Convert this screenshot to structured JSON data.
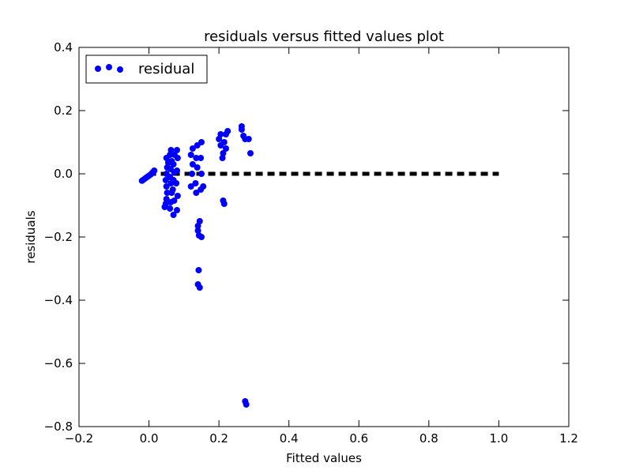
{
  "chart_data": {
    "type": "scatter",
    "title": "residuals versus fitted values plot",
    "xlabel": "Fitted values",
    "ylabel": "residuals",
    "xlim": [
      -0.2,
      1.2
    ],
    "ylim": [
      -0.8,
      0.4
    ],
    "x_ticks": [
      -0.2,
      0.0,
      0.2,
      0.4,
      0.6,
      0.8,
      1.0,
      1.2
    ],
    "y_ticks": [
      -0.8,
      -0.6,
      -0.4,
      -0.2,
      0.0,
      0.2,
      0.4
    ],
    "x_tick_labels": [
      "−0.2",
      "0.0",
      "0.2",
      "0.4",
      "0.6",
      "0.8",
      "1.0",
      "1.2"
    ],
    "y_tick_labels": [
      "−0.8",
      "−0.6",
      "−0.4",
      "−0.2",
      "0.0",
      "0.2",
      "0.4"
    ],
    "grid": false,
    "legend": {
      "position": "top-left",
      "entries": [
        "residual"
      ]
    },
    "colors": {
      "points": "#0000ff",
      "zero_line": "#000000"
    },
    "reference_line": {
      "style": "dashed",
      "x": [
        0.0,
        1.0
      ],
      "y": [
        0.0,
        0.0
      ]
    },
    "series": [
      {
        "name": "residual",
        "points": [
          [
            -0.02,
            -0.022
          ],
          [
            -0.015,
            -0.018
          ],
          [
            -0.01,
            -0.014
          ],
          [
            -0.005,
            -0.01
          ],
          [
            0.0,
            -0.006
          ],
          [
            0.005,
            -0.002
          ],
          [
            0.01,
            0.004
          ],
          [
            0.015,
            0.01
          ],
          [
            0.045,
            -0.105
          ],
          [
            0.048,
            -0.095
          ],
          [
            0.05,
            -0.08
          ],
          [
            0.052,
            -0.06
          ],
          [
            0.05,
            -0.04
          ],
          [
            0.048,
            -0.02
          ],
          [
            0.05,
            0.0
          ],
          [
            0.052,
            0.02
          ],
          [
            0.055,
            0.035
          ],
          [
            0.05,
            0.05
          ],
          [
            0.06,
            -0.11
          ],
          [
            0.062,
            -0.09
          ],
          [
            0.065,
            -0.06
          ],
          [
            0.063,
            -0.03
          ],
          [
            0.06,
            -0.01
          ],
          [
            0.062,
            0.015
          ],
          [
            0.065,
            0.04
          ],
          [
            0.06,
            0.06
          ],
          [
            0.063,
            0.075
          ],
          [
            0.07,
            -0.13
          ],
          [
            0.072,
            -0.085
          ],
          [
            0.068,
            -0.05
          ],
          [
            0.07,
            -0.02
          ],
          [
            0.072,
            0.005
          ],
          [
            0.07,
            0.03
          ],
          [
            0.073,
            0.06
          ],
          [
            0.08,
            -0.115
          ],
          [
            0.082,
            -0.07
          ],
          [
            0.078,
            -0.03
          ],
          [
            0.08,
            0.01
          ],
          [
            0.082,
            0.05
          ],
          [
            0.08,
            0.075
          ],
          [
            0.12,
            -0.04
          ],
          [
            0.123,
            0.0
          ],
          [
            0.125,
            0.03
          ],
          [
            0.12,
            0.06
          ],
          [
            0.125,
            0.08
          ],
          [
            0.135,
            -0.06
          ],
          [
            0.133,
            -0.03
          ],
          [
            0.138,
            0.02
          ],
          [
            0.135,
            0.05
          ],
          [
            0.138,
            0.09
          ],
          [
            0.14,
            -0.165
          ],
          [
            0.14,
            -0.18
          ],
          [
            0.143,
            -0.195
          ],
          [
            0.142,
            -0.305
          ],
          [
            0.14,
            -0.35
          ],
          [
            0.145,
            -0.36
          ],
          [
            0.145,
            -0.15
          ],
          [
            0.15,
            -0.2
          ],
          [
            0.148,
            -0.05
          ],
          [
            0.15,
            0.0
          ],
          [
            0.148,
            0.05
          ],
          [
            0.15,
            0.1
          ],
          [
            0.155,
            -0.04
          ],
          [
            0.2,
            0.11
          ],
          [
            0.205,
            0.09
          ],
          [
            0.21,
            0.05
          ],
          [
            0.212,
            -0.085
          ],
          [
            0.215,
            -0.095
          ],
          [
            0.212,
            0.065
          ],
          [
            0.215,
            0.1
          ],
          [
            0.22,
            0.08
          ],
          [
            0.22,
            0.125
          ],
          [
            0.225,
            0.135
          ],
          [
            0.205,
            0.125
          ],
          [
            0.265,
            0.15
          ],
          [
            0.265,
            0.14
          ],
          [
            0.27,
            0.12
          ],
          [
            0.275,
            0.11
          ],
          [
            0.285,
            0.11
          ],
          [
            0.29,
            0.065
          ],
          [
            0.275,
            -0.72
          ],
          [
            0.278,
            -0.73
          ]
        ]
      }
    ]
  }
}
